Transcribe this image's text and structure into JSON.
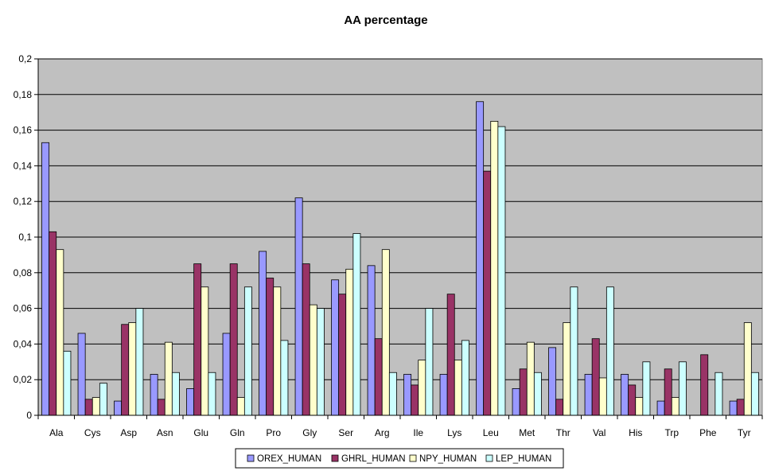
{
  "chart_data": {
    "type": "bar",
    "title": "AA percentage",
    "xlabel": "",
    "ylabel": "",
    "ylim": [
      0,
      0.2
    ],
    "yticks": [
      "0",
      "0,02",
      "0,04",
      "0,06",
      "0,08",
      "0,1",
      "0,12",
      "0,14",
      "0,16",
      "0,18",
      "0,2"
    ],
    "grid": true,
    "legend_position": "bottom",
    "categories": [
      "Ala",
      "Cys",
      "Asp",
      "Asn",
      "Glu",
      "Gln",
      "Pro",
      "Gly",
      "Ser",
      "Arg",
      "Ile",
      "Lys",
      "Leu",
      "Met",
      "Thr",
      "Val",
      "His",
      "Trp",
      "Phe",
      "Tyr"
    ],
    "series": [
      {
        "name": "OREX_HUMAN",
        "color": "#9999ff",
        "values": [
          0.153,
          0.046,
          0.008,
          0.023,
          0.015,
          0.046,
          0.092,
          0.122,
          0.076,
          0.084,
          0.023,
          0.023,
          0.176,
          0.015,
          0.038,
          0.023,
          0.023,
          0.008,
          0.0,
          0.008
        ]
      },
      {
        "name": "GHRL_HUMAN",
        "color": "#993366",
        "values": [
          0.103,
          0.009,
          0.051,
          0.009,
          0.085,
          0.085,
          0.077,
          0.085,
          0.068,
          0.043,
          0.017,
          0.068,
          0.137,
          0.026,
          0.009,
          0.043,
          0.017,
          0.026,
          0.034,
          0.009
        ]
      },
      {
        "name": "NPY_HUMAN",
        "color": "#ffffcc",
        "values": [
          0.093,
          0.01,
          0.052,
          0.041,
          0.072,
          0.01,
          0.072,
          0.062,
          0.082,
          0.093,
          0.031,
          0.031,
          0.165,
          0.041,
          0.052,
          0.021,
          0.01,
          0.01,
          0.0,
          0.052
        ]
      },
      {
        "name": "LEP_HUMAN",
        "color": "#ccffff",
        "values": [
          0.036,
          0.018,
          0.06,
          0.024,
          0.024,
          0.072,
          0.042,
          0.06,
          0.102,
          0.024,
          0.06,
          0.042,
          0.162,
          0.024,
          0.072,
          0.072,
          0.03,
          0.03,
          0.024,
          0.024
        ]
      }
    ]
  }
}
